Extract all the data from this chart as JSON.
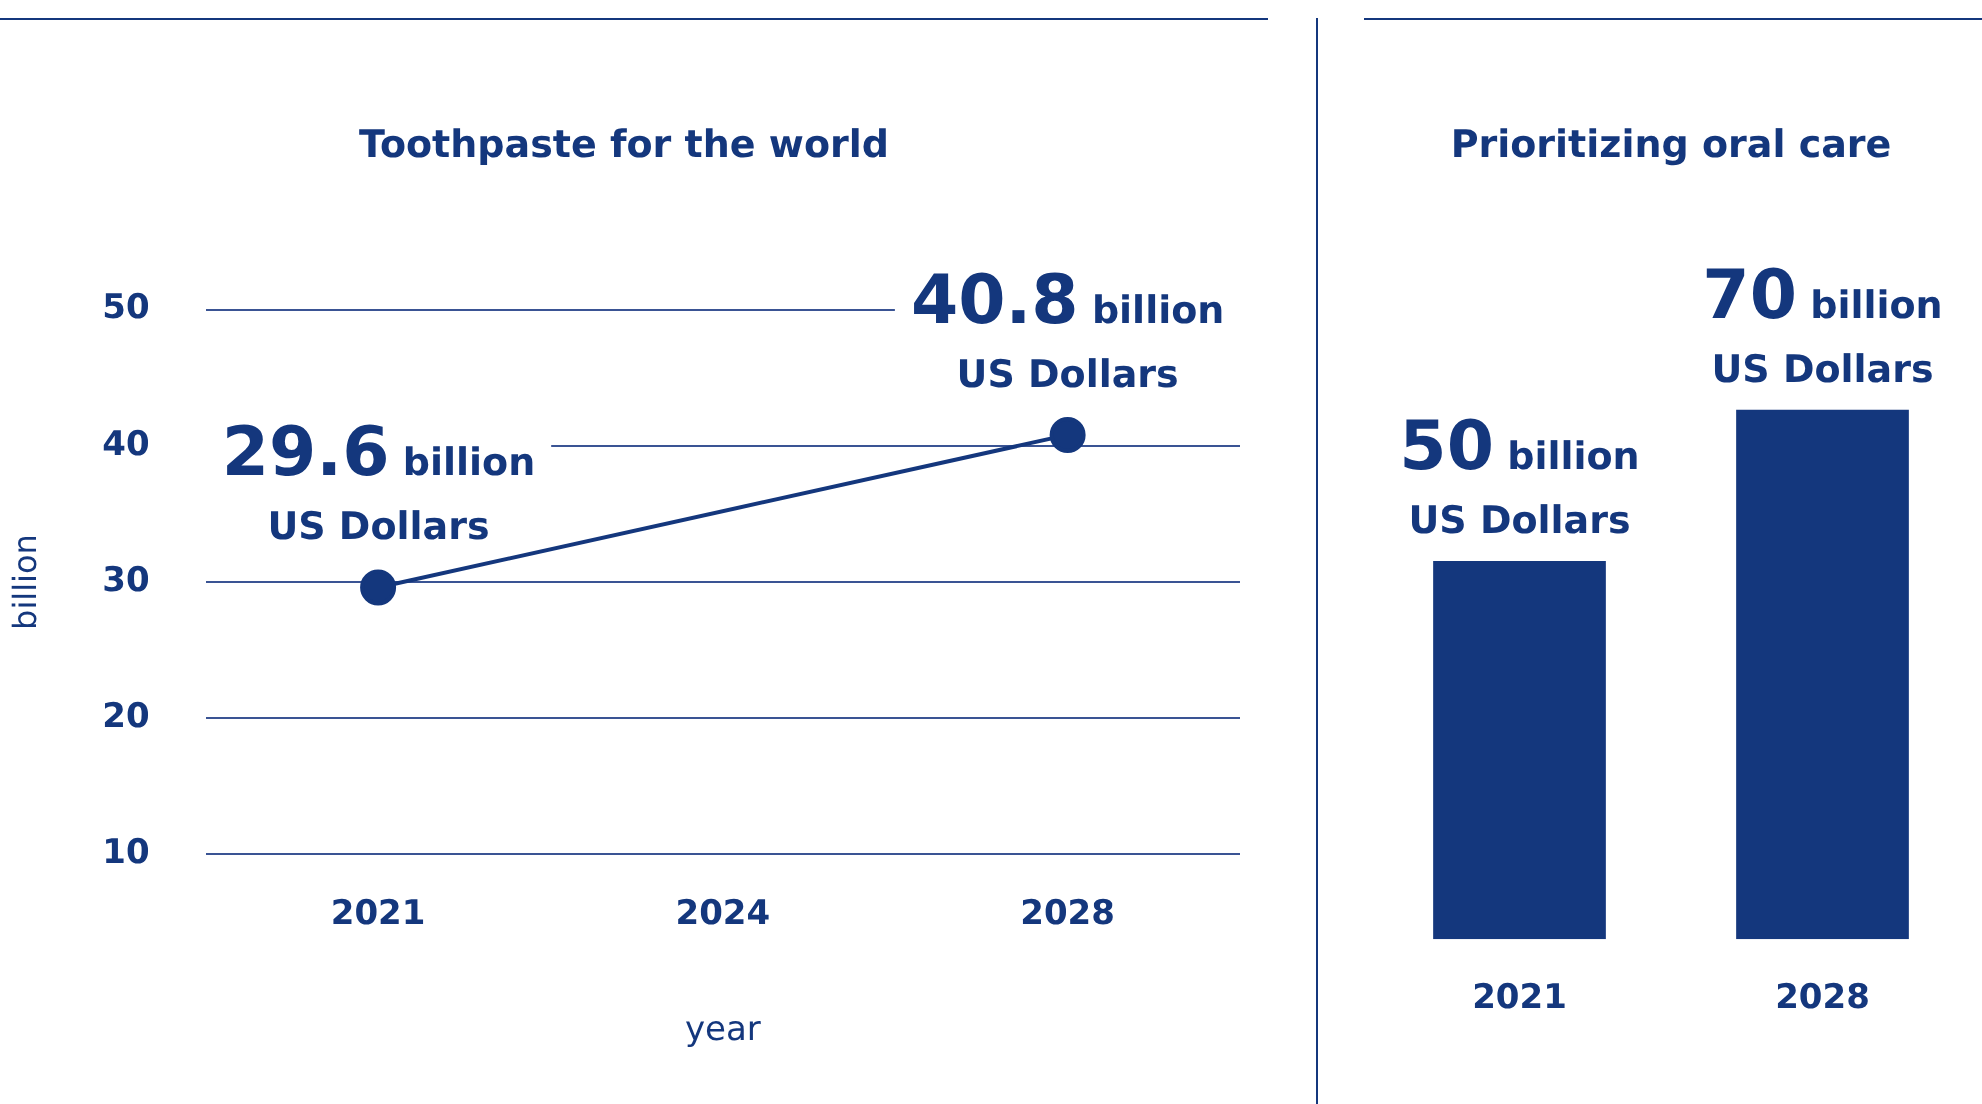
{
  "chart_data": [
    {
      "type": "line",
      "title": "Toothpaste for the world",
      "xlabel": "year",
      "ylabel": "billion",
      "categories": [
        "2021",
        "2024",
        "2028"
      ],
      "series": [
        {
          "color": "#14377d",
          "values": [
            29.6,
            null,
            40.8
          ],
          "value_labels": [
            "29.6 billion\nUS Dollars",
            null,
            "40.8 billion\nUS Dollars"
          ]
        }
      ],
      "ylim": [
        10,
        50
      ],
      "yticks": [
        10,
        20,
        30,
        40,
        50
      ],
      "grid": "y",
      "marker": "circle"
    },
    {
      "type": "bar",
      "title": "Prioritizing oral care",
      "categories": [
        "2021",
        "2028"
      ],
      "series": [
        {
          "color": "#14377d",
          "values": [
            50,
            70
          ],
          "value_labels": [
            "50 billion\nUS Dollars",
            "70 billion\nUS Dollars"
          ]
        }
      ],
      "tick_labels": "x"
    }
  ]
}
